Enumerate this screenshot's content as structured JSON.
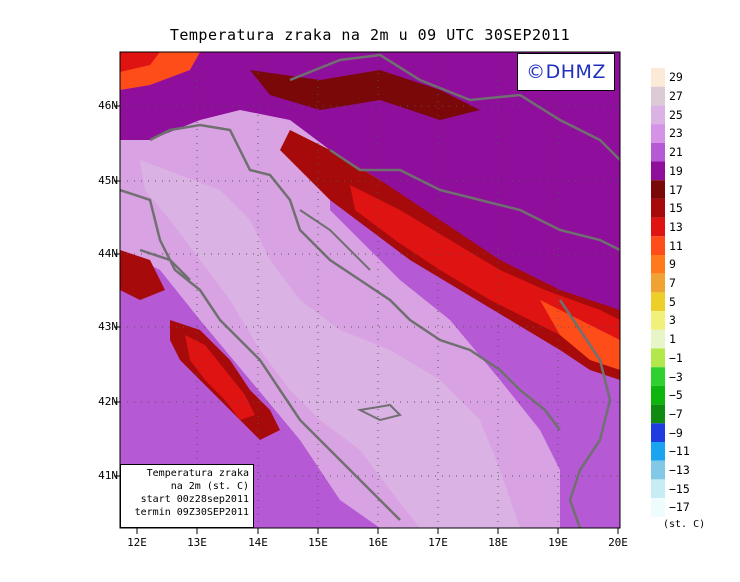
{
  "title": "Temperatura zraka na 2m u 09 UTC 30SEP2011",
  "logo": "©DHMZ",
  "info_box": {
    "line1": "Temperatura zraka",
    "line2": "na 2m (st. C)",
    "line3": "start 00z28sep2011",
    "line4": "termin 09Z30SEP2011"
  },
  "lat_ticks": [
    "46N",
    "45N",
    "44N",
    "43N",
    "42N",
    "41N"
  ],
  "lon_ticks": [
    "12E",
    "13E",
    "14E",
    "15E",
    "16E",
    "17E",
    "18E",
    "19E",
    "20E"
  ],
  "legend": {
    "units": "(st. C)",
    "labels": [
      "29",
      "27",
      "25",
      "23",
      "21",
      "19",
      "17",
      "15",
      "13",
      "11",
      "9",
      "7",
      "5",
      "3",
      "1",
      "−1",
      "−3",
      "−5",
      "−7",
      "−9",
      "−11",
      "−13",
      "−15",
      "−17"
    ],
    "colors": [
      "#fde9d7",
      "#dccbd6",
      "#dab2e3",
      "#d593e8",
      "#b559d4",
      "#8f0e9c",
      "#7a0808",
      "#a60a0a",
      "#e01313",
      "#ff4d1a",
      "#ff7a1a",
      "#f0a233",
      "#eecf2a",
      "#f0f07a",
      "#e8f5c8",
      "#b3e84d",
      "#2fd02f",
      "#0db50d",
      "#118a11",
      "#1f3ce0",
      "#1aa3f0",
      "#84c8e8",
      "#c8ecf4",
      "#eefcfd"
    ]
  },
  "colors": {
    "frame": "#000000",
    "coast": "#707070",
    "logo_text": "#1f2fbf",
    "sea": "#d9a3e3",
    "land_warm": "#8f0e9c"
  }
}
